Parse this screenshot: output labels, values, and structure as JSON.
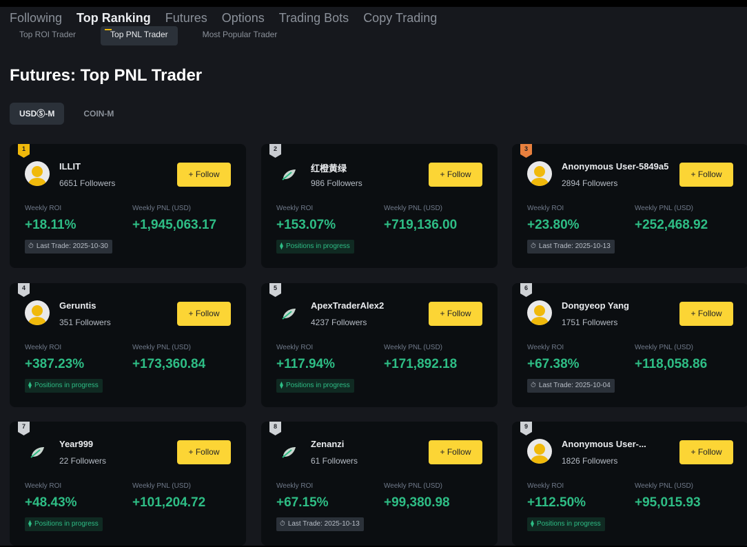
{
  "nav": {
    "tabs": [
      {
        "label": "Following"
      },
      {
        "label": "Top Ranking"
      },
      {
        "label": "Futures"
      },
      {
        "label": "Options"
      },
      {
        "label": "Trading Bots"
      },
      {
        "label": "Copy Trading"
      }
    ],
    "active": 1
  },
  "sub_tabs": {
    "items": [
      {
        "label": "Top ROI Trader"
      },
      {
        "label": "Top PNL Trader"
      },
      {
        "label": "Most Popular Trader"
      }
    ],
    "active": 1
  },
  "page_title": "Futures: Top PNL Trader",
  "type_tabs": {
    "items": [
      {
        "label": "USDⓈ-M"
      },
      {
        "label": "COIN-M"
      }
    ],
    "active": 0
  },
  "labels": {
    "follow": "+ Follow",
    "weekly_roi": "Weekly ROI",
    "weekly_pnl": "Weekly PNL (USD)"
  },
  "colors": {
    "accent": "#fcd535",
    "positive": "#2ebd85",
    "background": "#16181d",
    "card": "#0b0e11",
    "rank_gold": "#f0b90b",
    "rank_silver": "#c8cbd0",
    "rank_bronze": "#e8803e"
  },
  "traders": [
    {
      "rank": "1",
      "medal": "gold",
      "avatar": "default",
      "name": "ILLIT",
      "followers": "6651 Followers",
      "roi": "+18.11%",
      "pnl": "+1,945,063.17",
      "status": "last",
      "status_text": "Last Trade: 2025-10-30"
    },
    {
      "rank": "2",
      "medal": "silver",
      "avatar": "leaf",
      "name": "红橙黄绿",
      "followers": "986 Followers",
      "roi": "+153.07%",
      "pnl": "+719,136.00",
      "status": "live",
      "status_text": "Positions in progress"
    },
    {
      "rank": "3",
      "medal": "bronze",
      "avatar": "default",
      "name": "Anonymous User-5849a5",
      "followers": "2894 Followers",
      "roi": "+23.80%",
      "pnl": "+252,468.92",
      "status": "last",
      "status_text": "Last Trade: 2025-10-13"
    },
    {
      "rank": "4",
      "medal": "grey",
      "avatar": "default",
      "name": "Geruntis",
      "followers": "351 Followers",
      "roi": "+387.23%",
      "pnl": "+173,360.84",
      "status": "live",
      "status_text": "Positions in progress"
    },
    {
      "rank": "5",
      "medal": "grey",
      "avatar": "leaf",
      "name": "ApexTraderAlex2",
      "followers": "4237 Followers",
      "roi": "+117.94%",
      "pnl": "+171,892.18",
      "status": "live",
      "status_text": "Positions in progress"
    },
    {
      "rank": "6",
      "medal": "grey",
      "avatar": "default",
      "name": "Dongyeop Yang",
      "followers": "1751 Followers",
      "roi": "+67.38%",
      "pnl": "+118,058.86",
      "status": "last",
      "status_text": "Last Trade: 2025-10-04"
    },
    {
      "rank": "7",
      "medal": "grey",
      "avatar": "leaf",
      "name": "Year999",
      "followers": "22 Followers",
      "roi": "+48.43%",
      "pnl": "+101,204.72",
      "status": "live",
      "status_text": "Positions in progress"
    },
    {
      "rank": "8",
      "medal": "grey",
      "avatar": "leaf",
      "name": "Zenanzi",
      "followers": "61 Followers",
      "roi": "+67.15%",
      "pnl": "+99,380.98",
      "status": "last",
      "status_text": "Last Trade: 2025-10-13"
    },
    {
      "rank": "9",
      "medal": "grey",
      "avatar": "default",
      "name": "Anonymous User-...",
      "followers": "1826 Followers",
      "roi": "+112.50%",
      "pnl": "+95,015.93",
      "status": "live",
      "status_text": "Positions in progress"
    }
  ]
}
